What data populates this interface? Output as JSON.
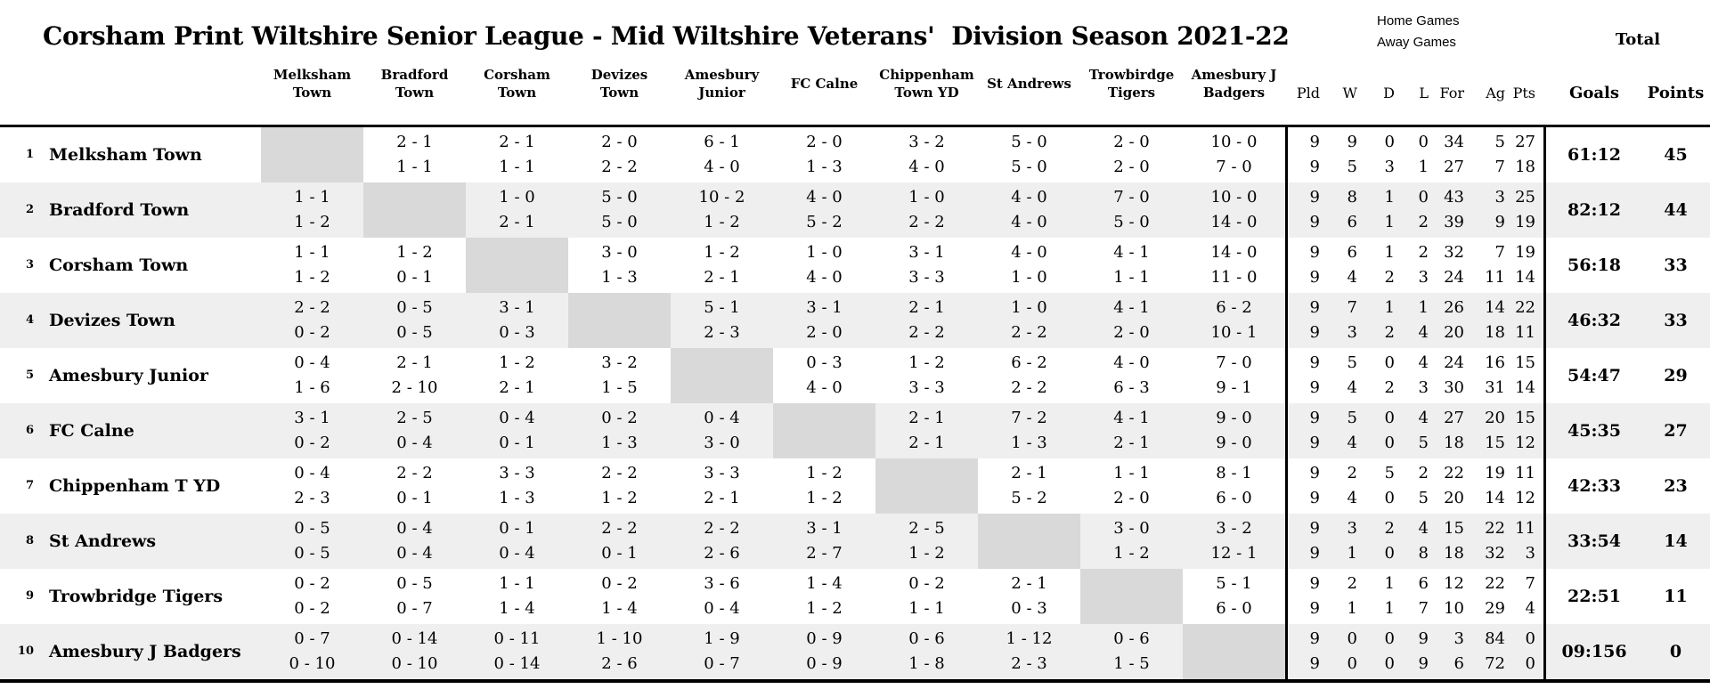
{
  "title": "Corsham Print Wiltshire Senior League - Mid Wiltshire Veterans'  Division Season 2021-22",
  "legend": {
    "home_games": "Home Games",
    "away_games": "Away Games",
    "total": "Total"
  },
  "columns": {
    "teams": [
      [
        "Melksham",
        "Town"
      ],
      [
        "Bradford",
        "Town"
      ],
      [
        "Corsham",
        "Town"
      ],
      [
        "Devizes",
        "Town"
      ],
      [
        "Amesbury",
        "Junior"
      ],
      [
        "FC Calne"
      ],
      [
        "Chippenham",
        "Town YD"
      ],
      [
        "St Andrews"
      ],
      [
        "Trowbirdge",
        "Tigers"
      ],
      [
        "Amesbury J",
        "Badgers"
      ]
    ],
    "stats": [
      "Pld",
      "W",
      "D",
      "L",
      "For",
      "Ag",
      "Pts"
    ],
    "goals": "Goals",
    "points": "Points"
  },
  "colors": {
    "stripe": "#efefef",
    "diagonal": "#d9d9d9",
    "border": "#000000",
    "background": "#ffffff"
  },
  "rows": [
    {
      "rank": "1",
      "team": "Melksham Town",
      "results": [
        null,
        {
          "home": "2 - 1",
          "away": "1 - 1"
        },
        {
          "home": "2 - 1",
          "away": "1 - 1"
        },
        {
          "home": "2 - 0",
          "away": "2 - 2"
        },
        {
          "home": "6 - 1",
          "away": "4 - 0"
        },
        {
          "home": "2 - 0",
          "away": "1 - 3"
        },
        {
          "home": "3 - 2",
          "away": "4 - 0"
        },
        {
          "home": "5 - 0",
          "away": "5 - 0"
        },
        {
          "home": "2 - 0",
          "away": "2 - 0"
        },
        {
          "home": "10 - 0",
          "away": "7 - 0"
        }
      ],
      "home_stats": [
        "9",
        "9",
        "0",
        "0",
        "34",
        "5",
        "27"
      ],
      "away_stats": [
        "9",
        "5",
        "3",
        "1",
        "27",
        "7",
        "18"
      ],
      "goals": "61:12",
      "points": "45"
    },
    {
      "rank": "2",
      "team": "Bradford Town",
      "results": [
        {
          "home": "1 - 1",
          "away": "1 - 2"
        },
        null,
        {
          "home": "1 - 0",
          "away": "2 - 1"
        },
        {
          "home": "5 - 0",
          "away": "5 - 0"
        },
        {
          "home": "10 - 2",
          "away": "1 - 2"
        },
        {
          "home": "4 - 0",
          "away": "5 - 2"
        },
        {
          "home": "1 - 0",
          "away": "2 - 2"
        },
        {
          "home": "4 - 0",
          "away": "4 - 0"
        },
        {
          "home": "7 - 0",
          "away": "5 - 0"
        },
        {
          "home": "10 - 0",
          "away": "14 - 0"
        }
      ],
      "home_stats": [
        "9",
        "8",
        "1",
        "0",
        "43",
        "3",
        "25"
      ],
      "away_stats": [
        "9",
        "6",
        "1",
        "2",
        "39",
        "9",
        "19"
      ],
      "goals": "82:12",
      "points": "44"
    },
    {
      "rank": "3",
      "team": "Corsham Town",
      "results": [
        {
          "home": "1 - 1",
          "away": "1 - 2"
        },
        {
          "home": "1 - 2",
          "away": "0 - 1"
        },
        null,
        {
          "home": "3 - 0",
          "away": "1 - 3"
        },
        {
          "home": "1 - 2",
          "away": "2 - 1"
        },
        {
          "home": "1 - 0",
          "away": "4 - 0"
        },
        {
          "home": "3 - 1",
          "away": "3 - 3"
        },
        {
          "home": "4 - 0",
          "away": "1 - 0"
        },
        {
          "home": "4 - 1",
          "away": "1 - 1"
        },
        {
          "home": "14 - 0",
          "away": "11 - 0"
        }
      ],
      "home_stats": [
        "9",
        "6",
        "1",
        "2",
        "32",
        "7",
        "19"
      ],
      "away_stats": [
        "9",
        "4",
        "2",
        "3",
        "24",
        "11",
        "14"
      ],
      "goals": "56:18",
      "points": "33"
    },
    {
      "rank": "4",
      "team": "Devizes Town",
      "results": [
        {
          "home": "2 - 2",
          "away": "0 - 2"
        },
        {
          "home": "0 - 5",
          "away": "0 - 5"
        },
        {
          "home": "3 - 1",
          "away": "0 - 3"
        },
        null,
        {
          "home": "5 - 1",
          "away": "2 - 3"
        },
        {
          "home": "3 - 1",
          "away": "2 - 0"
        },
        {
          "home": "2 - 1",
          "away": "2 - 2"
        },
        {
          "home": "1 - 0",
          "away": "2 - 2"
        },
        {
          "home": "4 - 1",
          "away": "2 - 0"
        },
        {
          "home": "6 - 2",
          "away": "10 - 1"
        }
      ],
      "home_stats": [
        "9",
        "7",
        "1",
        "1",
        "26",
        "14",
        "22"
      ],
      "away_stats": [
        "9",
        "3",
        "2",
        "4",
        "20",
        "18",
        "11"
      ],
      "goals": "46:32",
      "points": "33"
    },
    {
      "rank": "5",
      "team": "Amesbury Junior",
      "results": [
        {
          "home": "0 - 4",
          "away": "1 - 6"
        },
        {
          "home": "2 - 1",
          "away": "2 - 10"
        },
        {
          "home": "1 - 2",
          "away": "2 - 1"
        },
        {
          "home": "3 - 2",
          "away": "1 - 5"
        },
        null,
        {
          "home": "0 - 3",
          "away": "4 - 0"
        },
        {
          "home": "1 - 2",
          "away": "3 - 3"
        },
        {
          "home": "6 - 2",
          "away": "2 - 2"
        },
        {
          "home": "4 - 0",
          "away": "6 - 3"
        },
        {
          "home": "7 - 0",
          "away": "9 - 1"
        }
      ],
      "home_stats": [
        "9",
        "5",
        "0",
        "4",
        "24",
        "16",
        "15"
      ],
      "away_stats": [
        "9",
        "4",
        "2",
        "3",
        "30",
        "31",
        "14"
      ],
      "goals": "54:47",
      "points": "29"
    },
    {
      "rank": "6",
      "team": "FC Calne",
      "results": [
        {
          "home": "3 - 1",
          "away": "0 - 2"
        },
        {
          "home": "2 - 5",
          "away": "0 - 4"
        },
        {
          "home": "0 - 4",
          "away": "0 - 1"
        },
        {
          "home": "0 - 2",
          "away": "1 - 3"
        },
        {
          "home": "0 - 4",
          "away": "3 - 0"
        },
        null,
        {
          "home": "2 - 1",
          "away": "2 - 1"
        },
        {
          "home": "7 - 2",
          "away": "1 - 3"
        },
        {
          "home": "4 - 1",
          "away": "2 - 1"
        },
        {
          "home": "9 - 0",
          "away": "9 - 0"
        }
      ],
      "home_stats": [
        "9",
        "5",
        "0",
        "4",
        "27",
        "20",
        "15"
      ],
      "away_stats": [
        "9",
        "4",
        "0",
        "5",
        "18",
        "15",
        "12"
      ],
      "goals": "45:35",
      "points": "27"
    },
    {
      "rank": "7",
      "team": "Chippenham T YD",
      "results": [
        {
          "home": "0 - 4",
          "away": "2 - 3"
        },
        {
          "home": "2 - 2",
          "away": "0 - 1"
        },
        {
          "home": "3 - 3",
          "away": "1 - 3"
        },
        {
          "home": "2 - 2",
          "away": "1 - 2"
        },
        {
          "home": "3 - 3",
          "away": "2 - 1"
        },
        {
          "home": "1 - 2",
          "away": "1 - 2"
        },
        null,
        {
          "home": "2 - 1",
          "away": "5 - 2"
        },
        {
          "home": "1 - 1",
          "away": "2 - 0"
        },
        {
          "home": "8 - 1",
          "away": "6 - 0"
        }
      ],
      "home_stats": [
        "9",
        "2",
        "5",
        "2",
        "22",
        "19",
        "11"
      ],
      "away_stats": [
        "9",
        "4",
        "0",
        "5",
        "20",
        "14",
        "12"
      ],
      "goals": "42:33",
      "points": "23"
    },
    {
      "rank": "8",
      "team": "St Andrews",
      "results": [
        {
          "home": "0 - 5",
          "away": "0 - 5"
        },
        {
          "home": "0 - 4",
          "away": "0 - 4"
        },
        {
          "home": "0 - 1",
          "away": "0 - 4"
        },
        {
          "home": "2 - 2",
          "away": "0 - 1"
        },
        {
          "home": "2 - 2",
          "away": "2 - 6"
        },
        {
          "home": "3 - 1",
          "away": "2 - 7"
        },
        {
          "home": "2 - 5",
          "away": "1 - 2"
        },
        null,
        {
          "home": "3 - 0",
          "away": "1 - 2"
        },
        {
          "home": "3 - 2",
          "away": "12 - 1"
        }
      ],
      "home_stats": [
        "9",
        "3",
        "2",
        "4",
        "15",
        "22",
        "11"
      ],
      "away_stats": [
        "9",
        "1",
        "0",
        "8",
        "18",
        "32",
        "3"
      ],
      "goals": "33:54",
      "points": "14"
    },
    {
      "rank": "9",
      "team": "Trowbridge Tigers",
      "results": [
        {
          "home": "0 - 2",
          "away": "0 - 2"
        },
        {
          "home": "0 - 5",
          "away": "0 - 7"
        },
        {
          "home": "1 - 1",
          "away": "1 - 4"
        },
        {
          "home": "0 - 2",
          "away": "1 - 4"
        },
        {
          "home": "3 - 6",
          "away": "0 - 4"
        },
        {
          "home": "1 - 4",
          "away": "1 - 2"
        },
        {
          "home": "0 - 2",
          "away": "1 - 1"
        },
        {
          "home": "2 - 1",
          "away": "0 - 3"
        },
        null,
        {
          "home": "5 - 1",
          "away": "6 - 0"
        }
      ],
      "home_stats": [
        "9",
        "2",
        "1",
        "6",
        "12",
        "22",
        "7"
      ],
      "away_stats": [
        "9",
        "1",
        "1",
        "7",
        "10",
        "29",
        "4"
      ],
      "goals": "22:51",
      "points": "11"
    },
    {
      "rank": "10",
      "team": "Amesbury J Badgers",
      "results": [
        {
          "home": "0 - 7",
          "away": "0 - 10"
        },
        {
          "home": "0 - 14",
          "away": "0 - 10"
        },
        {
          "home": "0 - 11",
          "away": "0 - 14"
        },
        {
          "home": "1 - 10",
          "away": "2 - 6"
        },
        {
          "home": "1 - 9",
          "away": "0 - 7"
        },
        {
          "home": "0 - 9",
          "away": "0 - 9"
        },
        {
          "home": "0 - 6",
          "away": "1 - 8"
        },
        {
          "home": "1 - 12",
          "away": "2 - 3"
        },
        {
          "home": "0 - 6",
          "away": "1 - 5"
        },
        null
      ],
      "home_stats": [
        "9",
        "0",
        "0",
        "9",
        "3",
        "84",
        "0"
      ],
      "away_stats": [
        "9",
        "0",
        "0",
        "9",
        "6",
        "72",
        "0"
      ],
      "goals": "09:156",
      "points": "0"
    }
  ]
}
